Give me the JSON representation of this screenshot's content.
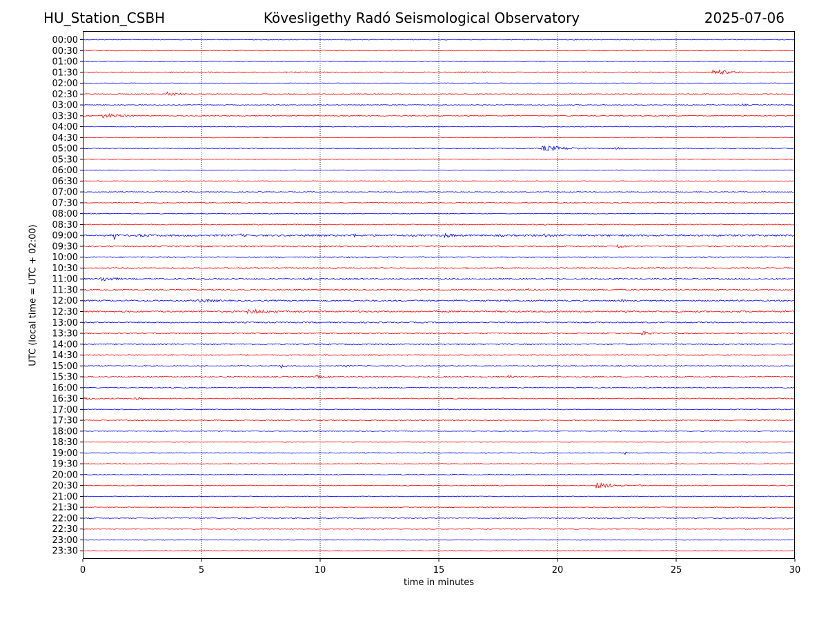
{
  "header": {
    "station": "HU_Station_CSBH",
    "title": "Kövesligethy Radó Seismological Observatory",
    "date": "2025-07-06"
  },
  "colors": {
    "even": "#0000ff",
    "odd": "#ff0000"
  },
  "chart_data": {
    "type": "line",
    "xlabel": "time in minutes",
    "ylabel": "UTC (local time = UTC + 02:00)",
    "xlim": [
      0,
      30
    ],
    "xticks": [
      0,
      5,
      10,
      15,
      20,
      25,
      30
    ],
    "grid": "vertical dotted at x ticks",
    "rows": [
      "00:00",
      "00:30",
      "01:00",
      "01:30",
      "02:00",
      "02:30",
      "03:00",
      "03:30",
      "04:00",
      "04:30",
      "05:00",
      "05:30",
      "06:00",
      "06:30",
      "07:00",
      "07:30",
      "08:00",
      "08:30",
      "09:00",
      "09:30",
      "10:00",
      "10:30",
      "11:00",
      "11:30",
      "12:00",
      "12:30",
      "13:00",
      "13:30",
      "14:00",
      "14:30",
      "15:00",
      "15:30",
      "16:00",
      "16:30",
      "17:00",
      "17:30",
      "18:00",
      "18:30",
      "19:00",
      "19:30",
      "20:00",
      "20:30",
      "21:00",
      "21:30",
      "22:00",
      "22:30",
      "23:00",
      "23:30"
    ],
    "noise": {
      "0": 0.5,
      "1": 0.6,
      "2": 0.5,
      "3": 0.8,
      "4": 0.5,
      "5": 0.6,
      "6": 0.5,
      "7": 0.6,
      "8": 0.5,
      "9": 0.5,
      "10": 0.6,
      "11": 0.5,
      "12": 0.5,
      "13": 0.5,
      "14": 0.5,
      "15": 0.5,
      "16": 0.5,
      "17": 0.7,
      "18": 1.3,
      "19": 1.0,
      "20": 0.8,
      "21": 0.9,
      "22": 1.0,
      "23": 0.9,
      "24": 1.0,
      "25": 1.1,
      "26": 0.9,
      "27": 0.8,
      "28": 0.8,
      "29": 0.8,
      "30": 0.8,
      "31": 0.9,
      "32": 0.7,
      "33": 0.7,
      "34": 0.6,
      "35": 0.6,
      "36": 0.5,
      "37": 0.5,
      "38": 0.6,
      "39": 0.5,
      "40": 0.5,
      "41": 0.6,
      "42": 0.5,
      "43": 0.5,
      "44": 0.6,
      "45": 0.6,
      "46": 0.5,
      "47": 0.6
    },
    "bursts": [
      {
        "row": 3,
        "start": 26.5,
        "end": 28.3,
        "amp": 3.5
      },
      {
        "row": 5,
        "start": 3.5,
        "end": 4.6,
        "amp": 3.5
      },
      {
        "row": 6,
        "start": 27.8,
        "end": 28.5,
        "amp": 1.5
      },
      {
        "row": 7,
        "start": 0.8,
        "end": 2.8,
        "amp": 3.2
      },
      {
        "row": 10,
        "start": 19.3,
        "end": 21.5,
        "amp": 4.0
      },
      {
        "row": 10,
        "start": 22.4,
        "end": 23.0,
        "amp": 2.0
      },
      {
        "row": 18,
        "start": 1.3,
        "end": 1.5,
        "amp": 8.0
      },
      {
        "row": 18,
        "start": 2.2,
        "end": 4.8,
        "amp": 2.2
      },
      {
        "row": 18,
        "start": 6.6,
        "end": 7.4,
        "amp": 2.5
      },
      {
        "row": 18,
        "start": 9.6,
        "end": 10.3,
        "amp": 2.5
      },
      {
        "row": 18,
        "start": 11.3,
        "end": 12.2,
        "amp": 2.5
      },
      {
        "row": 18,
        "start": 15.2,
        "end": 16.2,
        "amp": 3.5
      },
      {
        "row": 18,
        "start": 17.6,
        "end": 18.1,
        "amp": 2.2
      },
      {
        "row": 18,
        "start": 19.4,
        "end": 20.3,
        "amp": 3.2
      },
      {
        "row": 19,
        "start": 22.5,
        "end": 23.3,
        "amp": 3.2
      },
      {
        "row": 22,
        "start": 0.7,
        "end": 2.2,
        "amp": 3.5
      },
      {
        "row": 22,
        "start": 9.3,
        "end": 10.3,
        "amp": 1.8
      },
      {
        "row": 23,
        "start": 18.7,
        "end": 19.7,
        "amp": 1.8
      },
      {
        "row": 24,
        "start": 4.8,
        "end": 7.1,
        "amp": 2.5
      },
      {
        "row": 24,
        "start": 22.6,
        "end": 23.3,
        "amp": 2.0
      },
      {
        "row": 25,
        "start": 3.1,
        "end": 3.5,
        "amp": 2.2
      },
      {
        "row": 25,
        "start": 6.9,
        "end": 9.3,
        "amp": 3.2
      },
      {
        "row": 27,
        "start": 23.5,
        "end": 24.5,
        "amp": 3.0
      },
      {
        "row": 30,
        "start": 8.3,
        "end": 8.8,
        "amp": 3.2
      },
      {
        "row": 30,
        "start": 11.0,
        "end": 11.7,
        "amp": 1.8
      },
      {
        "row": 31,
        "start": 9.8,
        "end": 11.0,
        "amp": 2.0
      },
      {
        "row": 31,
        "start": 17.9,
        "end": 18.7,
        "amp": 2.0
      },
      {
        "row": 33,
        "start": 0.0,
        "end": 1.6,
        "amp": 1.8
      },
      {
        "row": 33,
        "start": 2.1,
        "end": 2.8,
        "amp": 3.5
      },
      {
        "row": 38,
        "start": 22.8,
        "end": 23.0,
        "amp": 2.5
      },
      {
        "row": 41,
        "start": 21.6,
        "end": 23.3,
        "amp": 4.0
      },
      {
        "row": 41,
        "start": 23.3,
        "end": 24.0,
        "amp": 1.5
      }
    ]
  }
}
